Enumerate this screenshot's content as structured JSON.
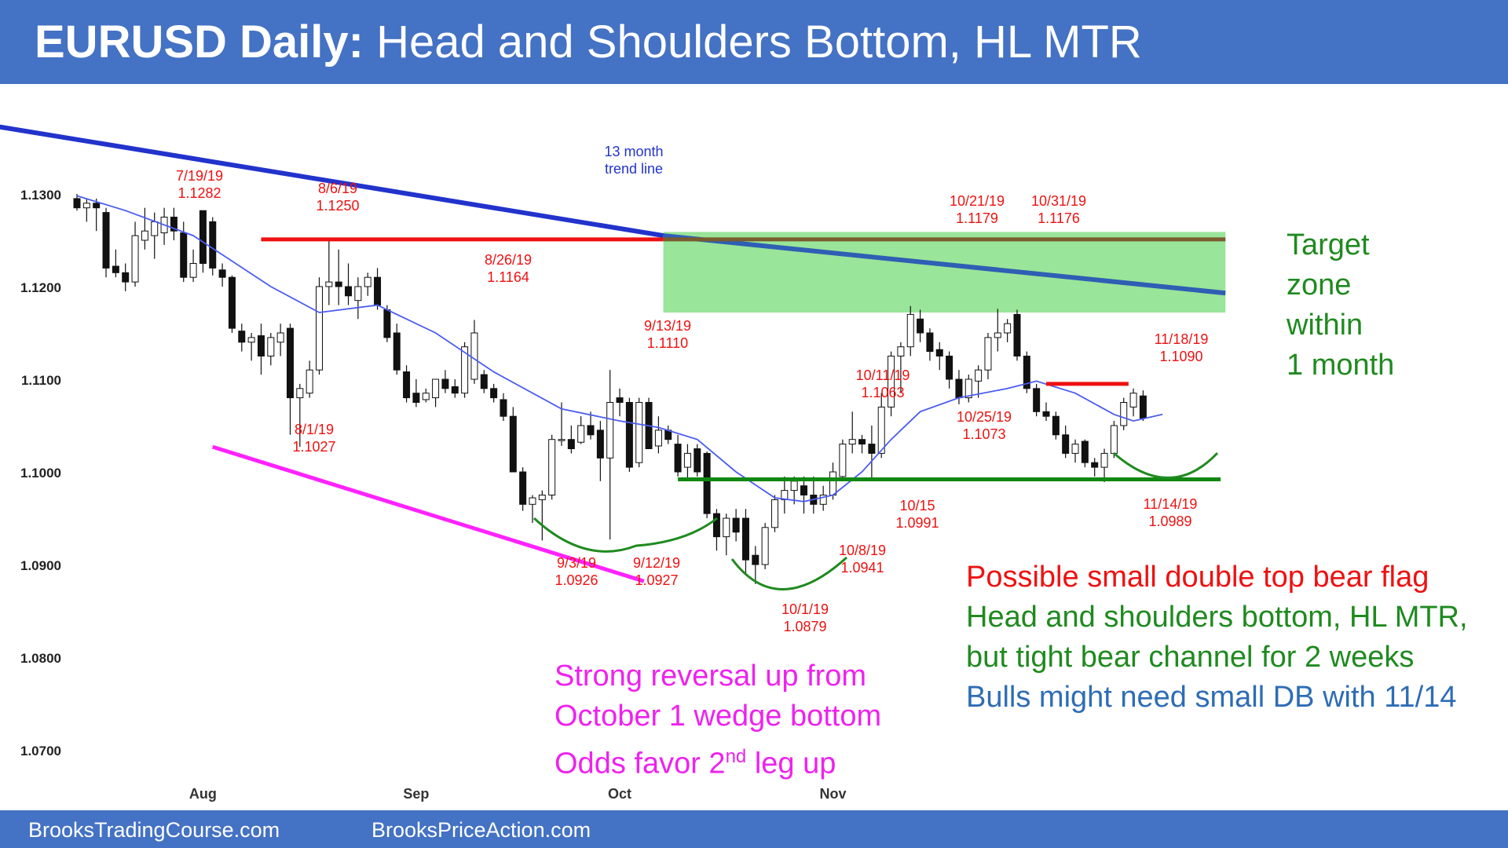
{
  "header": {
    "title_bold": "EURUSD Daily:",
    "title_rest": "Head and Shoulders Bottom, HL MTR",
    "background": "#4472c4"
  },
  "footer": {
    "left": "BrooksTradingCourse.com",
    "right": "BrooksPriceAction.com"
  },
  "chart_data": {
    "type": "candlestick",
    "symbol": "EURUSD",
    "timeframe": "Daily",
    "ylim": [
      1.065,
      1.138
    ],
    "y_ticks": [
      "1.1300",
      "1.1200",
      "1.1100",
      "1.1000",
      "1.0900",
      "1.0800",
      "1.0700"
    ],
    "y_tick_values": [
      1.13,
      1.12,
      1.11,
      1.1,
      1.09,
      1.08,
      1.07
    ],
    "x_labels": [
      {
        "label": "Aug",
        "bar": 13
      },
      {
        "label": "Sep",
        "bar": 35
      },
      {
        "label": "Oct",
        "bar": 56
      },
      {
        "label": "Nov",
        "bar": 78
      }
    ],
    "grid": false,
    "bars": [
      [
        1.1295,
        1.13,
        1.1282,
        1.1285
      ],
      [
        1.1285,
        1.1295,
        1.127,
        1.129
      ],
      [
        1.129,
        1.1295,
        1.126,
        1.1285
      ],
      [
        1.128,
        1.1285,
        1.121,
        1.122
      ],
      [
        1.1222,
        1.124,
        1.121,
        1.1215
      ],
      [
        1.1215,
        1.1225,
        1.1195,
        1.1205
      ],
      [
        1.1205,
        1.127,
        1.12,
        1.1255
      ],
      [
        1.125,
        1.1285,
        1.124,
        1.126
      ],
      [
        1.1255,
        1.128,
        1.123,
        1.127
      ],
      [
        1.1258,
        1.1285,
        1.1245,
        1.1275
      ],
      [
        1.1275,
        1.1285,
        1.125,
        1.126
      ],
      [
        1.1258,
        1.127,
        1.1205,
        1.121
      ],
      [
        1.121,
        1.124,
        1.1205,
        1.1225
      ],
      [
        1.1282,
        1.1282,
        1.1215,
        1.1225
      ],
      [
        1.127,
        1.1275,
        1.1212,
        1.122
      ],
      [
        1.1218,
        1.1225,
        1.12,
        1.121
      ],
      [
        1.121,
        1.1212,
        1.115,
        1.1155
      ],
      [
        1.1152,
        1.116,
        1.113,
        1.114
      ],
      [
        1.114,
        1.115,
        1.112,
        1.1145
      ],
      [
        1.1147,
        1.116,
        1.1105,
        1.1125
      ],
      [
        1.1125,
        1.115,
        1.1115,
        1.1145
      ],
      [
        1.114,
        1.116,
        1.1125,
        1.115
      ],
      [
        1.1155,
        1.116,
        1.104,
        1.108
      ],
      [
        1.108,
        1.1095,
        1.1027,
        1.109
      ],
      [
        1.1085,
        1.112,
        1.108,
        1.111
      ],
      [
        1.111,
        1.121,
        1.1105,
        1.12
      ],
      [
        1.12,
        1.125,
        1.118,
        1.1205
      ],
      [
        1.1205,
        1.124,
        1.118,
        1.12
      ],
      [
        1.12,
        1.1225,
        1.118,
        1.119
      ],
      [
        1.1185,
        1.121,
        1.1165,
        1.12
      ],
      [
        1.12,
        1.1215,
        1.119,
        1.121
      ],
      [
        1.121,
        1.122,
        1.1175,
        1.118
      ],
      [
        1.1175,
        1.118,
        1.114,
        1.1145
      ],
      [
        1.115,
        1.116,
        1.1105,
        1.111
      ],
      [
        1.1108,
        1.1115,
        1.1075,
        1.108
      ],
      [
        1.1085,
        1.11,
        1.107,
        1.1075
      ],
      [
        1.1078,
        1.109,
        1.1075,
        1.1085
      ],
      [
        1.108,
        1.1095,
        1.107,
        1.11
      ],
      [
        1.11,
        1.111,
        1.1085,
        1.109
      ],
      [
        1.1092,
        1.11,
        1.108,
        1.1085
      ],
      [
        1.1085,
        1.114,
        1.108,
        1.1135
      ],
      [
        1.11,
        1.1164,
        1.1095,
        1.115
      ],
      [
        1.1105,
        1.111,
        1.1085,
        1.109
      ],
      [
        1.109,
        1.1095,
        1.1075,
        1.108
      ],
      [
        1.1078,
        1.1085,
        1.1055,
        1.106
      ],
      [
        1.106,
        1.107,
        1.1,
        1.1
      ],
      [
        1.1,
        1.1005,
        1.0958,
        1.0965
      ],
      [
        1.0965,
        1.0975,
        1.0945,
        1.0972
      ],
      [
        1.097,
        1.098,
        1.0926,
        1.0975
      ],
      [
        1.0975,
        1.104,
        1.097,
        1.1035
      ],
      [
        1.1035,
        1.1075,
        1.1028,
        1.1035
      ],
      [
        1.1035,
        1.105,
        1.102,
        1.1025
      ],
      [
        1.1032,
        1.106,
        1.103,
        1.105
      ],
      [
        1.105,
        1.1065,
        1.1035,
        1.104
      ],
      [
        1.1045,
        1.1055,
        1.099,
        1.1015
      ],
      [
        1.1015,
        1.111,
        1.0927,
        1.1075
      ],
      [
        1.108,
        1.109,
        1.106,
        1.1075
      ],
      [
        1.1075,
        1.108,
        1.1,
        1.1005
      ],
      [
        1.101,
        1.108,
        1.1005,
        1.1075
      ],
      [
        1.1075,
        1.108,
        1.1025,
        1.1025
      ],
      [
        1.1028,
        1.106,
        1.102,
        1.1045
      ],
      [
        1.1045,
        1.105,
        1.103,
        1.1035
      ],
      [
        1.103,
        1.104,
        1.0995,
        1.1
      ],
      [
        1.1005,
        1.103,
        1.099,
        1.102
      ],
      [
        1.1025,
        1.103,
        1.0995,
        1.1
      ],
      [
        1.102,
        1.1022,
        1.095,
        1.0955
      ],
      [
        1.0955,
        1.096,
        1.0915,
        1.093
      ],
      [
        1.093,
        1.0955,
        1.091,
        1.095
      ],
      [
        1.095,
        1.096,
        1.0925,
        1.0935
      ],
      [
        1.095,
        1.096,
        1.089,
        1.0905
      ],
      [
        1.091,
        1.092,
        1.0879,
        1.09
      ],
      [
        1.09,
        1.0945,
        1.0895,
        1.094
      ],
      [
        1.094,
        1.0975,
        1.0935,
        1.097
      ],
      [
        1.097,
        1.0995,
        1.0955,
        1.098
      ],
      [
        1.098,
        1.0995,
        1.0965,
        1.099
      ],
      [
        1.0985,
        1.0995,
        1.0955,
        1.0975
      ],
      [
        1.0975,
        1.0995,
        1.0955,
        1.0965
      ],
      [
        1.0965,
        1.0985,
        1.0958,
        1.0975
      ],
      [
        1.0975,
        1.101,
        1.097,
        1.1
      ],
      [
        1.0995,
        1.1035,
        1.099,
        1.103
      ],
      [
        1.103,
        1.1065,
        1.102,
        1.1035
      ],
      [
        1.1035,
        1.104,
        1.102,
        1.103
      ],
      [
        1.103,
        1.105,
        1.0991,
        1.102
      ],
      [
        1.102,
        1.1085,
        1.1015,
        1.107
      ],
      [
        1.107,
        1.113,
        1.106,
        1.1125
      ],
      [
        1.1125,
        1.114,
        1.1085,
        1.1135
      ],
      [
        1.1135,
        1.1179,
        1.1125,
        1.117
      ],
      [
        1.1165,
        1.1175,
        1.114,
        1.115
      ],
      [
        1.115,
        1.1155,
        1.112,
        1.113
      ],
      [
        1.1132,
        1.114,
        1.111,
        1.1125
      ],
      [
        1.1125,
        1.113,
        1.109,
        1.11
      ],
      [
        1.11,
        1.111,
        1.1073,
        1.108
      ],
      [
        1.108,
        1.1105,
        1.1075,
        1.11
      ],
      [
        1.1098,
        1.1115,
        1.108,
        1.111
      ],
      [
        1.111,
        1.115,
        1.11,
        1.1145
      ],
      [
        1.1145,
        1.1176,
        1.113,
        1.115
      ],
      [
        1.115,
        1.1165,
        1.114,
        1.116
      ],
      [
        1.117,
        1.1175,
        1.112,
        1.1125
      ],
      [
        1.1125,
        1.113,
        1.1085,
        1.109
      ],
      [
        1.109,
        1.1095,
        1.106,
        1.1065
      ],
      [
        1.1065,
        1.1075,
        1.1055,
        1.106
      ],
      [
        1.106,
        1.1065,
        1.1035,
        1.104
      ],
      [
        1.104,
        1.105,
        1.1015,
        1.102
      ],
      [
        1.102,
        1.1035,
        1.101,
        1.103
      ],
      [
        1.1033,
        1.1035,
        1.1005,
        1.101
      ],
      [
        1.101,
        1.1015,
        1.0995,
        1.1005
      ],
      [
        1.1005,
        1.1025,
        1.0989,
        1.102
      ],
      [
        1.102,
        1.1055,
        1.1015,
        1.105
      ],
      [
        1.105,
        1.108,
        1.1045,
        1.1075
      ],
      [
        1.107,
        1.109,
        1.106,
        1.1085
      ],
      [
        1.1082,
        1.1088,
        1.1055,
        1.1058
      ]
    ],
    "moving_average": [
      [
        0,
        1.1298
      ],
      [
        5,
        1.1282
      ],
      [
        12,
        1.1255
      ],
      [
        20,
        1.12
      ],
      [
        25,
        1.1172
      ],
      [
        31,
        1.118
      ],
      [
        37,
        1.115
      ],
      [
        43,
        1.1108
      ],
      [
        50,
        1.1068
      ],
      [
        56,
        1.1055
      ],
      [
        60,
        1.1048
      ],
      [
        64,
        1.1035
      ],
      [
        68,
        1.1
      ],
      [
        72,
        1.0972
      ],
      [
        75,
        1.0968
      ],
      [
        78,
        1.0975
      ],
      [
        81,
        1.1
      ],
      [
        84,
        1.1035
      ],
      [
        87,
        1.1065
      ],
      [
        91,
        1.108
      ],
      [
        96,
        1.109
      ],
      [
        99,
        1.1098
      ],
      [
        103,
        1.1085
      ],
      [
        107,
        1.1062
      ],
      [
        109,
        1.1055
      ],
      [
        112,
        1.1062
      ]
    ],
    "lines": [
      {
        "name": "13 month trend line",
        "color": "#2233cc",
        "from": [
          -9.5,
          1.1375
        ],
        "to": [
          60.5,
          1.1255
        ]
      },
      {
        "name": "trend-line-continuation",
        "color": "#2e5fb4",
        "from": [
          60.5,
          1.1255
        ],
        "to": [
          118.5,
          1.1193
        ]
      },
      {
        "name": "wedge-line",
        "color": "#ff22ff",
        "from": [
          14,
          1.1027
        ],
        "to": [
          58.5,
          1.0882
        ]
      },
      {
        "name": "resistance-8-6",
        "color": "#ee1111",
        "from": [
          19,
          1.1251
        ],
        "to": [
          60.5,
          1.1251
        ]
      },
      {
        "name": "resistance-target-top",
        "color": "#7a5b2e",
        "from": [
          60.5,
          1.1251
        ],
        "to": [
          118.5,
          1.1251
        ]
      },
      {
        "name": "support-10-15",
        "color": "#118811",
        "from": [
          62,
          1.0992
        ],
        "to": [
          118,
          1.0992
        ]
      },
      {
        "name": "resistance-11-18",
        "color": "#ee1111",
        "from": [
          100,
          1.1095
        ],
        "to": [
          108.5,
          1.1095
        ]
      }
    ],
    "target_zone": {
      "from_bar": 60.5,
      "to_bar": 118.5,
      "top": 1.1259,
      "bottom": 1.1172,
      "color": "#99e599"
    },
    "labels": [
      {
        "date": "7/19/19",
        "price": "1.1282"
      },
      {
        "date": "8/6/19",
        "price": "1.1250"
      },
      {
        "date": "8/1/19",
        "price": "1.1027"
      },
      {
        "date": "8/26/19",
        "price": "1.1164"
      },
      {
        "date": "9/13/19",
        "price": "1.1110"
      },
      {
        "date": "9/3/19",
        "price": "1.0926"
      },
      {
        "date": "9/12/19",
        "price": "1.0927"
      },
      {
        "date": "10/1/19",
        "price": "1.0879"
      },
      {
        "date": "10/8/19",
        "price": "1.0941"
      },
      {
        "date": "10/11/19",
        "price": "1.1063"
      },
      {
        "date": "10/15",
        "price": "1.0991"
      },
      {
        "date": "10/21/19",
        "price": "1.1179"
      },
      {
        "date": "10/31/19",
        "price": "1.1176"
      },
      {
        "date": "10/25/19",
        "price": "1.1073"
      },
      {
        "date": "11/18/19",
        "price": "1.1090"
      },
      {
        "date": "11/14/19",
        "price": "1.0989"
      }
    ],
    "trend_label": [
      "13 month",
      "trend line"
    ]
  },
  "notes": {
    "target": [
      "Target",
      "zone",
      "within",
      "1 month"
    ],
    "target_color": "#1f8a1f",
    "reversal": [
      "Strong reversal up from",
      "October 1 wedge bottom"
    ],
    "odds_pre": "Odds favor 2",
    "odds_sup": "nd",
    "odds_post": " leg up",
    "reversal_color": "#ee22ee",
    "bear_flag": "Possible small double top bear flag",
    "bear_flag_color": "#ee1111",
    "hs": [
      "Head and shoulders bottom, HL MTR,",
      "but tight bear channel for 2 weeks"
    ],
    "hs_color": "#1f8a1f",
    "bulls": "Bulls might need small DB with 11/14",
    "bulls_color": "#2e6db5"
  }
}
